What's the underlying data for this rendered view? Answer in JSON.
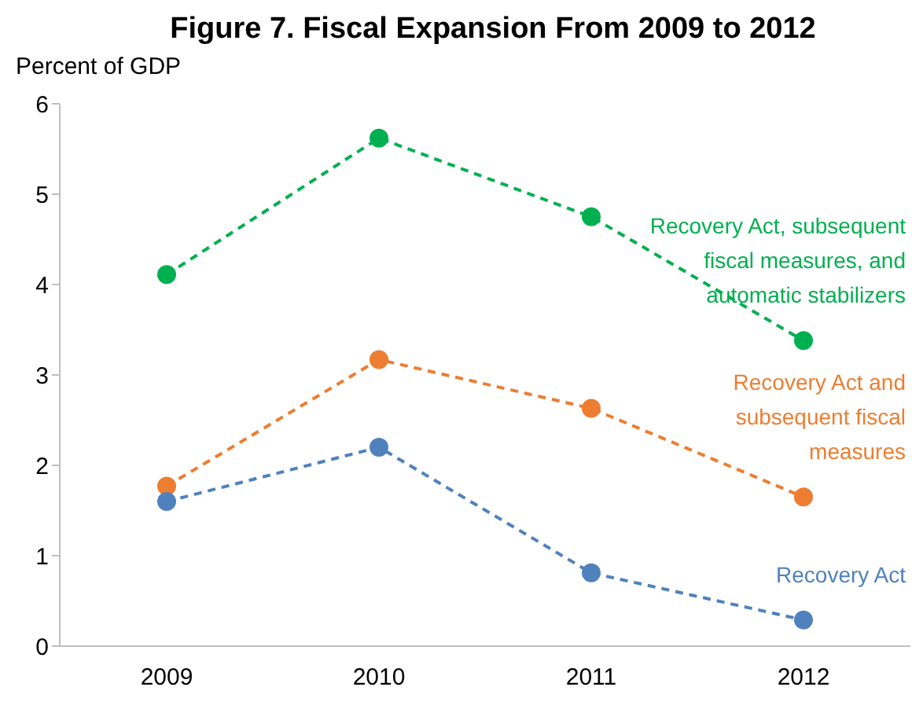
{
  "chart_data": {
    "type": "line",
    "title": "Figure 7. Fiscal Expansion From 2009 to 2012",
    "ylabel": "Percent of GDP",
    "categories": [
      "2009",
      "2010",
      "2011",
      "2012"
    ],
    "series": [
      {
        "name": "Recovery Act, subsequent fiscal measures, and automatic stabilizers",
        "color": "#00b050",
        "values": [
          4.11,
          5.62,
          4.75,
          3.38
        ]
      },
      {
        "name": "Recovery Act and subsequent fiscal measures",
        "color": "#ed7d31",
        "values": [
          1.77,
          3.17,
          2.63,
          1.65
        ]
      },
      {
        "name": "Recovery Act",
        "color": "#4f81bd",
        "values": [
          1.6,
          2.2,
          0.81,
          0.29
        ]
      }
    ],
    "ylim": [
      0,
      6
    ],
    "yticks": [
      0,
      1,
      2,
      3,
      4,
      5,
      6
    ],
    "grid": false,
    "legend": false,
    "marker": "circle",
    "line_style": "dashed"
  }
}
